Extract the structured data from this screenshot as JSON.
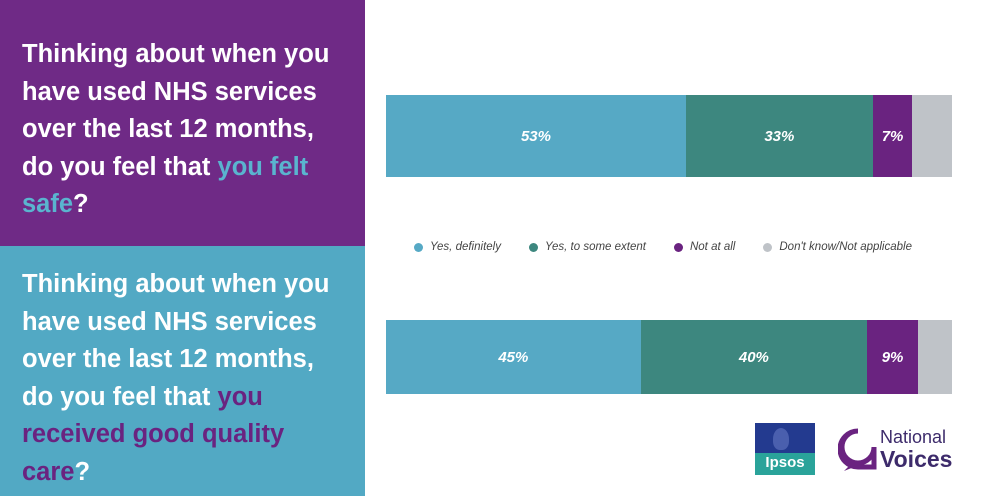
{
  "questions": [
    {
      "lead": "Thinking about when you have used NHS services over the last 12 months, do you feel that ",
      "highlight": "you felt safe",
      "end": "?"
    },
    {
      "lead": "Thinking about when you have used NHS services over the last 12 months, do you feel that ",
      "highlight": "you received good quality care",
      "end": "?"
    }
  ],
  "chart_data": {
    "type": "bar",
    "orientation": "horizontal-stacked",
    "legend_position": "between-bars",
    "legend": [
      "Yes, definitely",
      "Yes, to some extent",
      "Not at all",
      "Don't know/Not applicable"
    ],
    "colors": [
      "#56a9c5",
      "#3d877f",
      "#6a2380",
      "#bfc3c8"
    ],
    "series": [
      {
        "values": [
          53,
          33,
          7,
          7
        ],
        "labels": [
          "53%",
          "33%",
          "7%",
          ""
        ]
      },
      {
        "values": [
          45,
          40,
          9,
          6
        ],
        "labels": [
          "45%",
          "40%",
          "9%",
          ""
        ]
      }
    ]
  },
  "logos": {
    "ipsos": "Ipsos",
    "nv_line1": "National",
    "nv_line2": "Voices"
  },
  "icons": {
    "ipsos": "ipsos-logo",
    "national_voices": "national-voices-logo"
  }
}
